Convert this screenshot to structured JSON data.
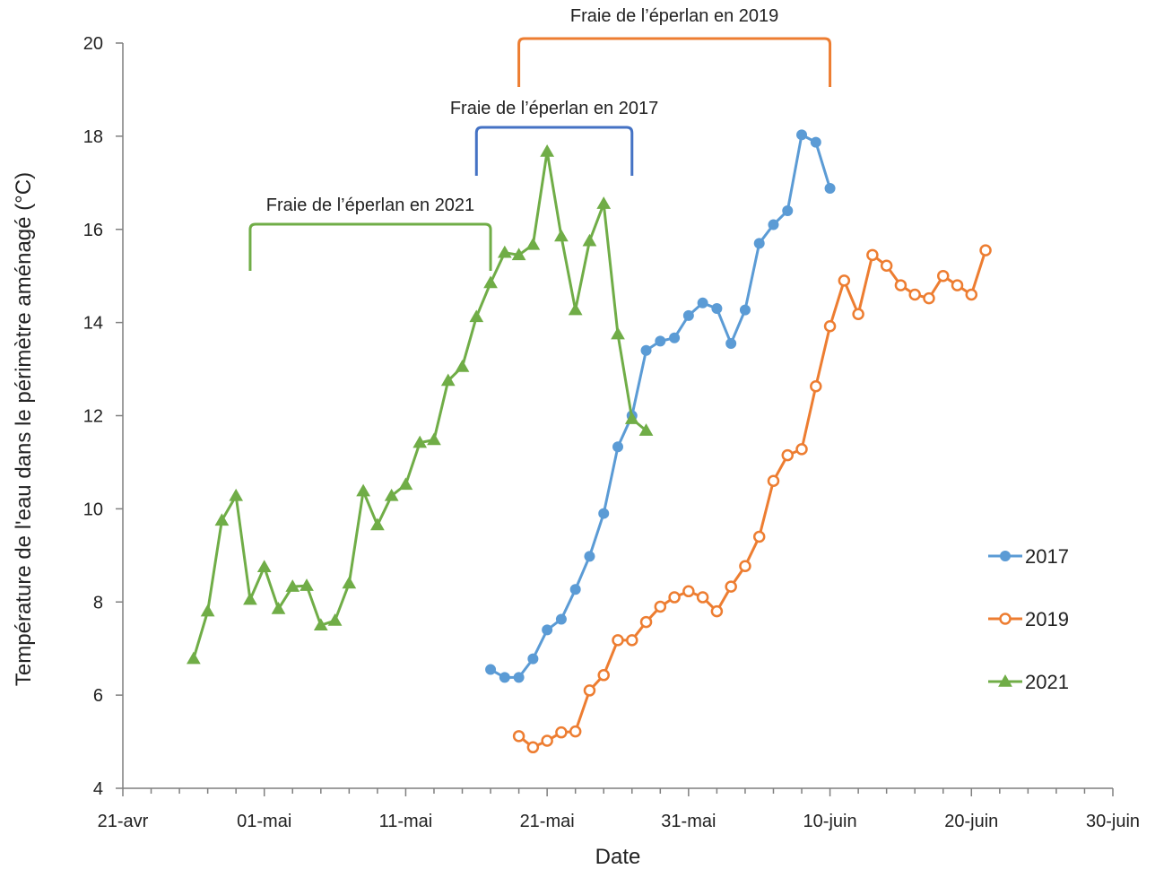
{
  "chart_data": {
    "type": "line",
    "xlabel": "Date",
    "ylabel": "Température de l'eau dans le périmètre aménagé (°C)",
    "ylim": [
      4,
      20
    ],
    "yticks": [
      4,
      6,
      8,
      10,
      12,
      14,
      16,
      18,
      20
    ],
    "xlim": [
      "2000-04-21",
      "2000-06-30"
    ],
    "xticks": [
      {
        "date": "2000-04-21",
        "label": "21-avr"
      },
      {
        "date": "2000-05-01",
        "label": "01-mai"
      },
      {
        "date": "2000-05-11",
        "label": "11-mai"
      },
      {
        "date": "2000-05-21",
        "label": "21-mai"
      },
      {
        "date": "2000-05-31",
        "label": "31-mai"
      },
      {
        "date": "2000-06-10",
        "label": "10-juin"
      },
      {
        "date": "2000-06-20",
        "label": "20-juin"
      },
      {
        "date": "2000-06-30",
        "label": "30-juin"
      }
    ],
    "grid": false,
    "legend_position": "right",
    "series": [
      {
        "name": "2017",
        "color": "#5B9BD5",
        "marker": "filled-circle",
        "x": [
          "2000-05-17",
          "2000-05-18",
          "2000-05-19",
          "2000-05-20",
          "2000-05-21",
          "2000-05-22",
          "2000-05-23",
          "2000-05-24",
          "2000-05-25",
          "2000-05-26",
          "2000-05-27",
          "2000-05-28",
          "2000-05-29",
          "2000-05-30",
          "2000-05-31",
          "2000-06-01",
          "2000-06-02",
          "2000-06-03",
          "2000-06-04",
          "2000-06-05",
          "2000-06-06",
          "2000-06-07",
          "2000-06-08",
          "2000-06-09",
          "2000-06-10"
        ],
        "y": [
          6.55,
          6.38,
          6.38,
          6.78,
          7.4,
          7.63,
          8.27,
          8.98,
          9.9,
          11.33,
          12.0,
          13.4,
          13.6,
          13.67,
          14.15,
          14.42,
          14.3,
          13.55,
          14.27,
          15.7,
          16.1,
          16.4,
          18.03,
          17.87,
          16.88
        ]
      },
      {
        "name": "2019",
        "color": "#ED7D31",
        "marker": "open-circle",
        "x": [
          "2000-05-19",
          "2000-05-20",
          "2000-05-21",
          "2000-05-22",
          "2000-05-23",
          "2000-05-24",
          "2000-05-25",
          "2000-05-26",
          "2000-05-27",
          "2000-05-28",
          "2000-05-29",
          "2000-05-30",
          "2000-05-31",
          "2000-06-01",
          "2000-06-02",
          "2000-06-03",
          "2000-06-04",
          "2000-06-05",
          "2000-06-06",
          "2000-06-07",
          "2000-06-08",
          "2000-06-09",
          "2000-06-10",
          "2000-06-11",
          "2000-06-12",
          "2000-06-13",
          "2000-06-14",
          "2000-06-15",
          "2000-06-16",
          "2000-06-17",
          "2000-06-18",
          "2000-06-19",
          "2000-06-20",
          "2000-06-21"
        ],
        "y": [
          5.12,
          4.88,
          5.02,
          5.2,
          5.22,
          6.1,
          6.43,
          7.18,
          7.18,
          7.57,
          7.9,
          8.1,
          8.23,
          8.1,
          7.8,
          8.33,
          8.77,
          9.4,
          10.6,
          11.15,
          11.28,
          12.63,
          13.92,
          14.9,
          14.18,
          15.45,
          15.22,
          14.8,
          14.6,
          14.52,
          15.0,
          14.8,
          14.6,
          15.55
        ]
      },
      {
        "name": "2021",
        "color": "#70AD47",
        "marker": "triangle",
        "x": [
          "2000-04-26",
          "2000-04-27",
          "2000-04-28",
          "2000-04-29",
          "2000-04-30",
          "2000-05-01",
          "2000-05-02",
          "2000-05-03",
          "2000-05-04",
          "2000-05-05",
          "2000-05-06",
          "2000-05-07",
          "2000-05-08",
          "2000-05-09",
          "2000-05-10",
          "2000-05-11",
          "2000-05-12",
          "2000-05-13",
          "2000-05-14",
          "2000-05-15",
          "2000-05-16",
          "2000-05-17",
          "2000-05-18",
          "2000-05-19",
          "2000-05-20",
          "2000-05-21",
          "2000-05-22",
          "2000-05-23",
          "2000-05-24",
          "2000-05-25",
          "2000-05-26",
          "2000-05-27",
          "2000-05-28"
        ],
        "y": [
          6.78,
          7.8,
          9.75,
          10.28,
          8.05,
          8.75,
          7.85,
          8.33,
          8.35,
          7.5,
          7.6,
          8.4,
          10.38,
          9.65,
          10.28,
          10.52,
          11.42,
          11.48,
          12.75,
          13.05,
          14.12,
          14.85,
          15.5,
          15.45,
          15.67,
          17.67,
          15.85,
          14.27,
          15.75,
          16.55,
          13.75,
          11.93,
          11.68
        ]
      }
    ],
    "annotations": [
      {
        "text": "Fraie de l’éperlan en 2021",
        "start": "2000-04-30",
        "end": "2000-05-17",
        "color": "#70AD47"
      },
      {
        "text": "Fraie de l’éperlan en 2017",
        "start": "2000-05-16",
        "end": "2000-05-27",
        "color": "#4472C4"
      },
      {
        "text": "Fraie de l’éperlan en 2019",
        "start": "2000-05-19",
        "end": "2000-06-10",
        "color": "#ED7D31"
      }
    ]
  }
}
